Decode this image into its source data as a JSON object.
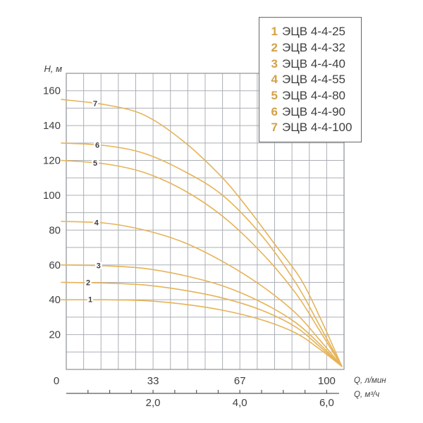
{
  "chart_data": {
    "type": "line",
    "title": "",
    "ylabel": "H, м",
    "xlabel_primary": "Q, л/мин",
    "xlabel_secondary": "Q, м³/ч",
    "ylim": [
      0,
      170
    ],
    "xlim_lmin": [
      0,
      106.7
    ],
    "grid": {
      "cols": 16,
      "rows": 17,
      "q_per_col": 6.667,
      "h_per_row": 10,
      "grid_on": true
    },
    "ytick_values": [
      20,
      40,
      60,
      80,
      100,
      120,
      140,
      160
    ],
    "ytick_labels": [
      "20",
      "40",
      "60",
      "80",
      "100",
      "120",
      "140",
      "160"
    ],
    "xticks_lmin": [
      {
        "label": "0",
        "col": 0
      },
      {
        "label": "33",
        "col": 5
      },
      {
        "label": "67",
        "col": 10
      },
      {
        "label": "100",
        "col": 15
      }
    ],
    "m3h_axis": {
      "lmin_per_m3h": 16.667,
      "tick_min": 0.5,
      "tick_max": 6.0,
      "tick_step": 0.5,
      "labels": [
        {
          "label": "2,0",
          "v": 2.0
        },
        {
          "label": "4,0",
          "v": 4.0
        },
        {
          "label": "6,0",
          "v": 6.0
        }
      ]
    },
    "legend_position": "top-right",
    "series": [
      {
        "id": "1",
        "name": "ЭЦВ 4-4-25",
        "label_q": 9.2,
        "points": [
          [
            -1.9,
            40
          ],
          [
            15,
            40
          ],
          [
            30,
            39.5
          ],
          [
            45,
            37.5
          ],
          [
            60,
            34
          ],
          [
            75,
            28.5
          ],
          [
            88,
            21
          ],
          [
            97,
            12
          ],
          [
            105.8,
            1.8
          ]
        ]
      },
      {
        "id": "2",
        "name": "ЭЦВ 4-4-32",
        "label_q": 8.4,
        "points": [
          [
            -1.9,
            50
          ],
          [
            15,
            49.6
          ],
          [
            30,
            48.5
          ],
          [
            45,
            45.5
          ],
          [
            60,
            41
          ],
          [
            75,
            34
          ],
          [
            88,
            24.5
          ],
          [
            97,
            13.5
          ],
          [
            105.8,
            1.8
          ]
        ]
      },
      {
        "id": "3",
        "name": "ЭЦВ 4-4-40",
        "label_q": 12.4,
        "points": [
          [
            -1.9,
            60
          ],
          [
            15,
            59.5
          ],
          [
            30,
            58
          ],
          [
            45,
            54
          ],
          [
            60,
            48
          ],
          [
            75,
            38.5
          ],
          [
            88,
            27
          ],
          [
            97,
            15
          ],
          [
            105.8,
            1.8
          ]
        ]
      },
      {
        "id": "4",
        "name": "ЭЦВ 4-4-55",
        "label_q": 11.6,
        "points": [
          [
            -1.9,
            85
          ],
          [
            15,
            84
          ],
          [
            30,
            80
          ],
          [
            45,
            73
          ],
          [
            60,
            62
          ],
          [
            75,
            48
          ],
          [
            88,
            32.5
          ],
          [
            97,
            17.5
          ],
          [
            105.8,
            1.8
          ]
        ]
      },
      {
        "id": "5",
        "name": "ЭЦВ 4-4-80",
        "label_q": 11.1,
        "points": [
          [
            -1.9,
            120
          ],
          [
            15,
            118
          ],
          [
            30,
            113
          ],
          [
            45,
            103
          ],
          [
            60,
            88
          ],
          [
            75,
            67
          ],
          [
            88,
            44
          ],
          [
            97,
            23
          ],
          [
            105.8,
            1.8
          ]
        ]
      },
      {
        "id": "6",
        "name": "ЭЦВ 4-4-90",
        "label_q": 11.9,
        "points": [
          [
            -1.9,
            130
          ],
          [
            15,
            128.5
          ],
          [
            30,
            124
          ],
          [
            45,
            114
          ],
          [
            60,
            100
          ],
          [
            75,
            77
          ],
          [
            88,
            50
          ],
          [
            97,
            26
          ],
          [
            105.8,
            1.8
          ]
        ]
      },
      {
        "id": "7",
        "name": "ЭЦВ 4-4-100",
        "label_q": 11.1,
        "points": [
          [
            -1.9,
            155
          ],
          [
            15,
            152
          ],
          [
            30,
            146
          ],
          [
            45,
            131
          ],
          [
            60,
            110
          ],
          [
            70,
            92
          ],
          [
            80,
            72
          ],
          [
            90,
            52
          ],
          [
            98,
            28
          ],
          [
            105.8,
            1.8
          ]
        ]
      }
    ]
  },
  "legend": {
    "items": [
      {
        "num": "1",
        "label": "ЭЦВ 4-4-25"
      },
      {
        "num": "2",
        "label": "ЭЦВ 4-4-32"
      },
      {
        "num": "3",
        "label": "ЭЦВ 4-4-40"
      },
      {
        "num": "4",
        "label": "ЭЦВ 4-4-55"
      },
      {
        "num": "5",
        "label": "ЭЦВ 4-4-80"
      },
      {
        "num": "6",
        "label": "ЭЦВ 4-4-90"
      },
      {
        "num": "7",
        "label": "ЭЦВ 4-4-100"
      }
    ]
  },
  "colors": {
    "curve": "#E6B357",
    "curve_label": "#D2A14A",
    "grid": "#ABAFB5",
    "grid_border": "#8D9197",
    "text": "#3F3F3F",
    "legend_num": "#D2A14A",
    "legend_border": "#666666",
    "axis_line": "#5A5A5A"
  }
}
